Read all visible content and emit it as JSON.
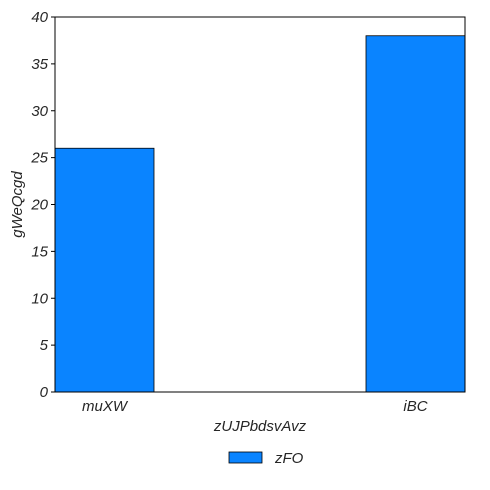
{
  "chart_data": {
    "type": "bar",
    "categories": [
      "muXW",
      "iBC"
    ],
    "series": [
      {
        "name": "zFO",
        "values": [
          26,
          38
        ],
        "color": "#0a84ff"
      }
    ],
    "xlabel": "zUJPbdsvAvz",
    "ylabel": "gWeQcgd",
    "ylim": [
      0,
      40
    ],
    "yticks": [
      0,
      5,
      10,
      15,
      20,
      25,
      30,
      35,
      40
    ],
    "grid": false,
    "legend": "bottom-center"
  }
}
